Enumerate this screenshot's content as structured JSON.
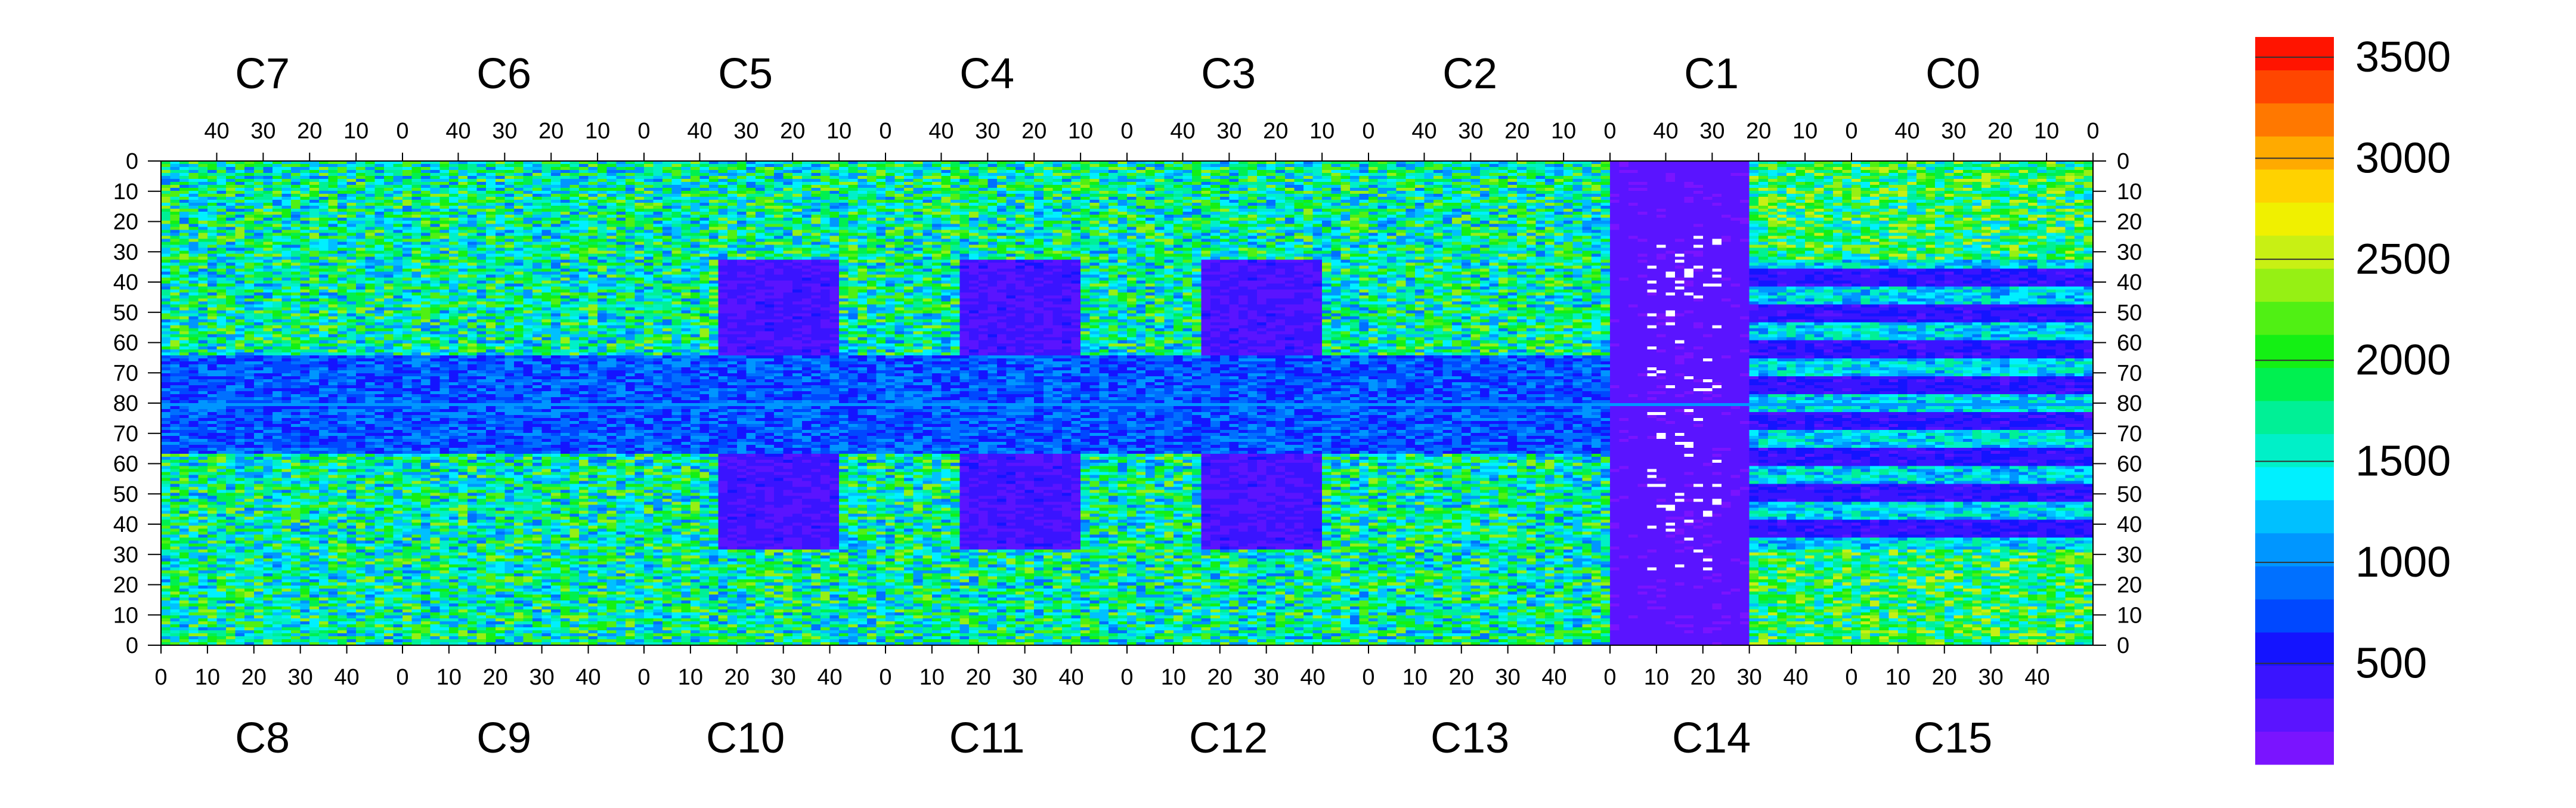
{
  "chart_data": {
    "type": "heatmap",
    "title": "",
    "top_chip_labels": [
      "C7",
      "C6",
      "C5",
      "C4",
      "C3",
      "C2",
      "C1",
      "C0"
    ],
    "bottom_chip_labels": [
      "C8",
      "C9",
      "C10",
      "C11",
      "C12",
      "C13",
      "C14",
      "C15"
    ],
    "top_axis_ticks": [
      "40",
      "30",
      "20",
      "10",
      "0"
    ],
    "bottom_axis_ticks": [
      "0",
      "10",
      "20",
      "30",
      "40"
    ],
    "left_axis_ticks": [
      "0",
      "10",
      "20",
      "30",
      "40",
      "50",
      "60",
      "70",
      "80",
      "70",
      "60",
      "50",
      "40",
      "30",
      "20",
      "10",
      "0"
    ],
    "right_axis_ticks": [
      "0",
      "10",
      "20",
      "30",
      "40",
      "50",
      "60",
      "70",
      "80",
      "70",
      "60",
      "50",
      "40",
      "30",
      "20",
      "10",
      "0"
    ],
    "columns_per_chip": 52,
    "rows_per_half": 80,
    "z_range": [
      0,
      3600
    ],
    "colorbar_ticks": [
      500,
      1000,
      1500,
      2000,
      2500,
      3000,
      3500
    ],
    "colorbar_labels": [
      "500",
      "1000",
      "1500",
      "2000",
      "2500",
      "3000",
      "3500"
    ],
    "colormap": [
      "#7a14ff",
      "#5a14ff",
      "#3a14ff",
      "#1414ff",
      "#0048ff",
      "#0070ff",
      "#0096ff",
      "#00c0ff",
      "#00f0ff",
      "#00f0c8",
      "#00f096",
      "#00f050",
      "#14f014",
      "#50f014",
      "#96f014",
      "#c8f014",
      "#f0f000",
      "#ffd200",
      "#ffaa00",
      "#ff7800",
      "#ff4600",
      "#ff1400"
    ],
    "empty_color": "#ffffff",
    "notes_visible": []
  }
}
